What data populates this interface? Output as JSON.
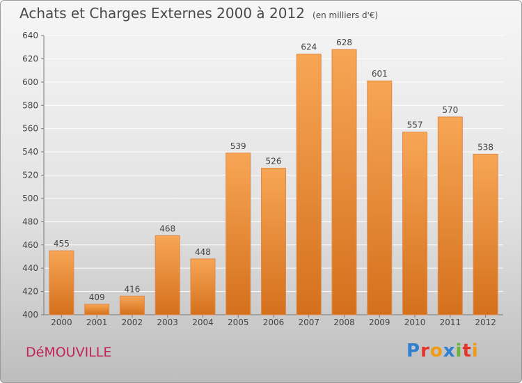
{
  "title": "Achats et Charges Externes 2000 à 2012",
  "unit_note": "(en milliers d'€)",
  "town": "DéMOUVILLE",
  "logo": {
    "text": "Proxiti",
    "letters": [
      {
        "char": "P",
        "color": "#2e7fd0"
      },
      {
        "char": "r",
        "color": "#e5352b"
      },
      {
        "char": "o",
        "color": "#f39a13"
      },
      {
        "char": "x",
        "color": "#2e7fd0"
      },
      {
        "char": "i",
        "color": "#6ab535"
      },
      {
        "char": "t",
        "color": "#e5352b"
      },
      {
        "char": "i",
        "color": "#f39a13"
      }
    ]
  },
  "colors": {
    "bar_top": "#f7a655",
    "bar_bottom": "#d4701c",
    "bar_edge": "#e0894a",
    "grid": "#ffffff",
    "text": "#444444"
  },
  "chart_data": {
    "type": "bar",
    "categories": [
      "2000",
      "2001",
      "2002",
      "2003",
      "2004",
      "2005",
      "2006",
      "2007",
      "2008",
      "2009",
      "2010",
      "2011",
      "2012"
    ],
    "values": [
      455,
      409,
      416,
      468,
      448,
      539,
      526,
      624,
      628,
      601,
      557,
      570,
      538
    ],
    "ylim": [
      400,
      640
    ],
    "yticks": [
      400,
      420,
      440,
      460,
      480,
      500,
      520,
      540,
      560,
      580,
      600,
      620,
      640
    ],
    "grid": true,
    "xlabel": "",
    "ylabel": ""
  }
}
